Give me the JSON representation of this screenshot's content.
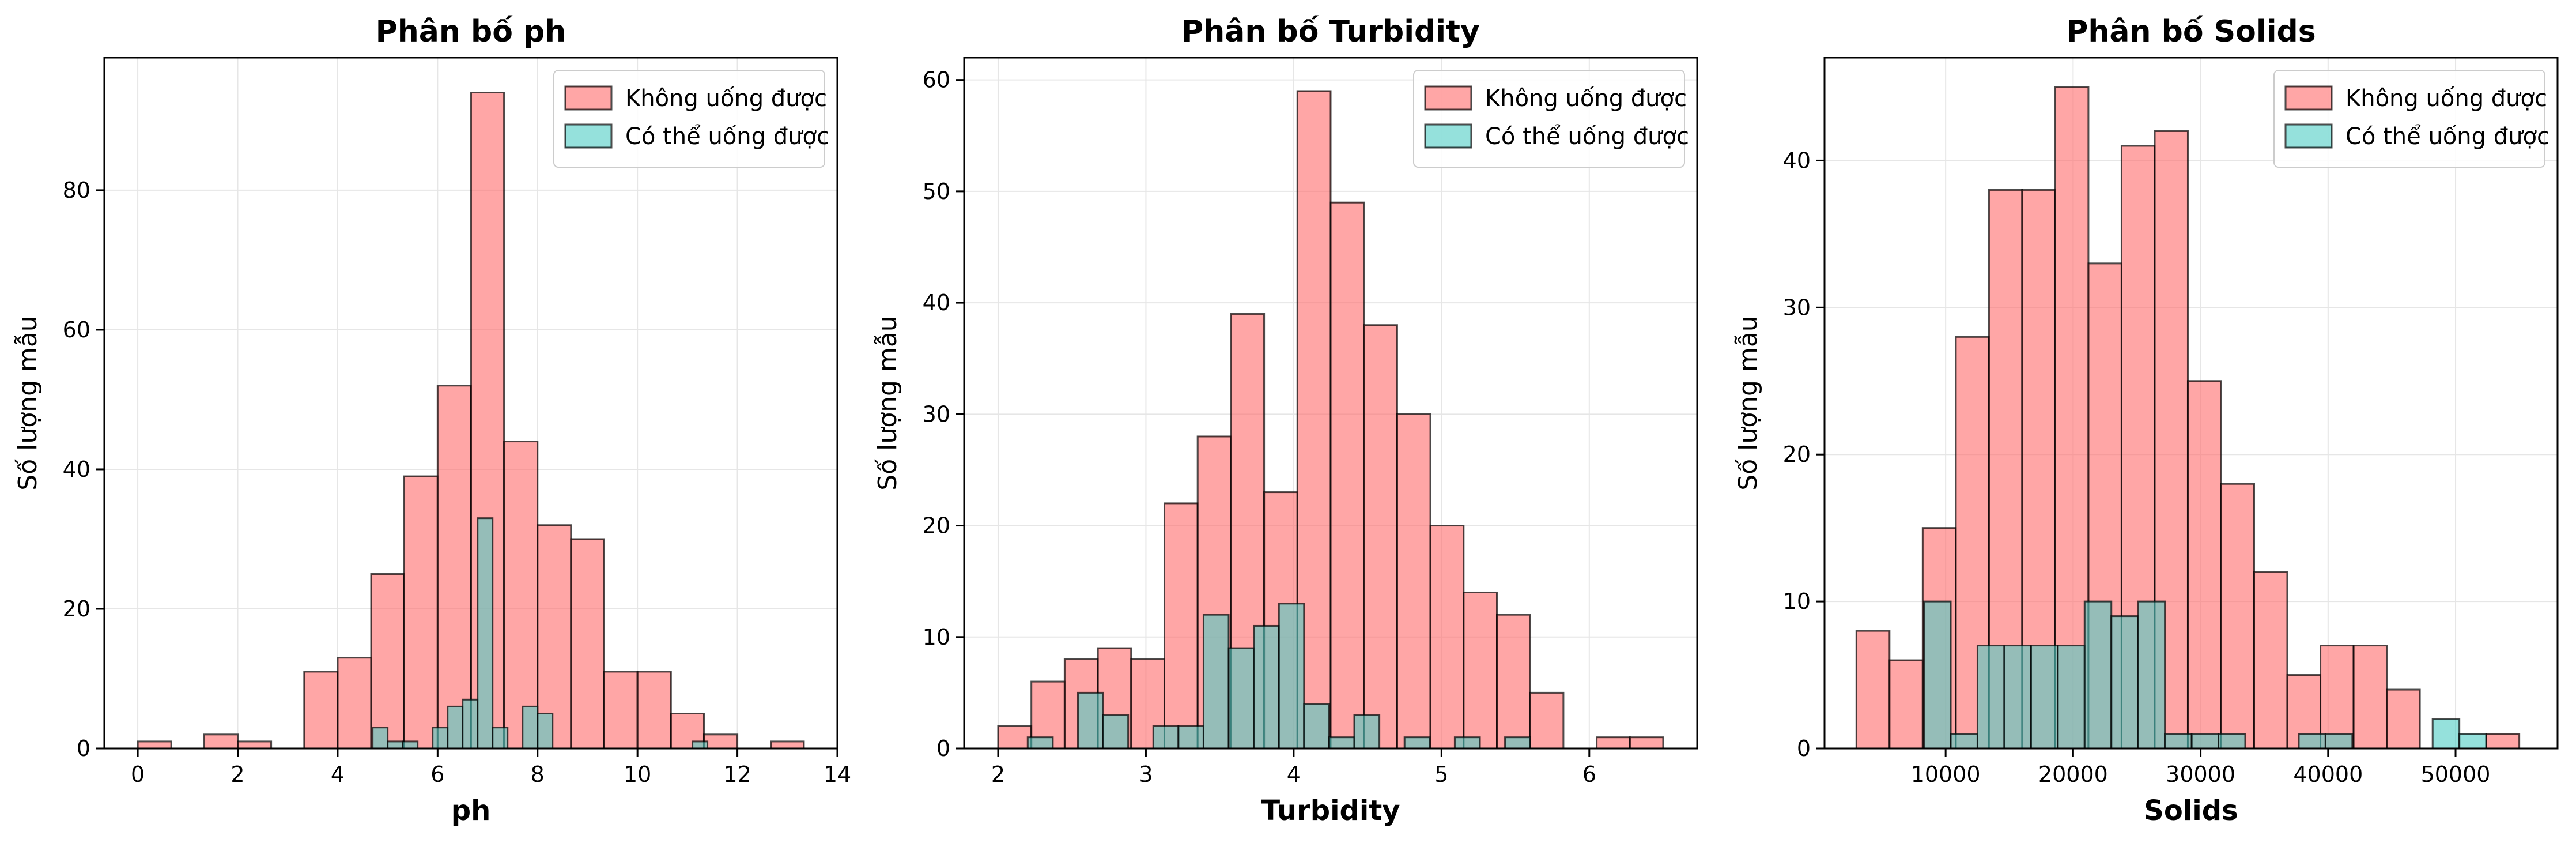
{
  "figure": {
    "colors": {
      "bar_0": "#ff6b6b",
      "bar_1": "#4ecdc4",
      "edge": "#000000",
      "grid": "#e6e6e6"
    },
    "legend_labels": [
      "Không uống được",
      "Có thể uống được"
    ]
  },
  "chart_data": [
    {
      "type": "histogram",
      "title": "Phân bố ph",
      "xlabel": "ph",
      "ylabel": "Số lượng mẫu",
      "xlim": [
        -0.67,
        14.0
      ],
      "ylim": [
        0,
        99
      ],
      "xticks": [
        0,
        2,
        4,
        6,
        8,
        10,
        12,
        14
      ],
      "yticks": [
        0,
        20,
        40,
        60,
        80
      ],
      "grid": true,
      "legend_position": "top-right",
      "series": [
        {
          "name": "Không uống được",
          "color": "#ff6b6b",
          "bins": [
            [
              0.0,
              0.67,
              1
            ],
            [
              0.67,
              1.33,
              0
            ],
            [
              1.33,
              2.0,
              2
            ],
            [
              2.0,
              2.67,
              1
            ],
            [
              2.67,
              3.33,
              0
            ],
            [
              3.33,
              4.0,
              11
            ],
            [
              4.0,
              4.67,
              13
            ],
            [
              4.67,
              5.33,
              25
            ],
            [
              5.33,
              6.0,
              39
            ],
            [
              6.0,
              6.67,
              52
            ],
            [
              6.67,
              7.33,
              94
            ],
            [
              7.33,
              8.0,
              44
            ],
            [
              8.0,
              8.67,
              32
            ],
            [
              8.67,
              9.33,
              30
            ],
            [
              9.33,
              10.0,
              11
            ],
            [
              10.0,
              10.67,
              11
            ],
            [
              10.67,
              11.33,
              5
            ],
            [
              11.33,
              12.0,
              2
            ],
            [
              12.0,
              12.67,
              0
            ],
            [
              12.67,
              13.33,
              1
            ]
          ]
        },
        {
          "name": "Có thể uống được",
          "color": "#4ecdc4",
          "bins": [
            [
              4.7,
              5.0,
              3
            ],
            [
              5.0,
              5.3,
              1
            ],
            [
              5.3,
              5.6,
              1
            ],
            [
              5.6,
              5.9,
              0
            ],
            [
              5.9,
              6.2,
              3
            ],
            [
              6.2,
              6.5,
              6
            ],
            [
              6.5,
              6.8,
              7
            ],
            [
              6.8,
              7.1,
              33
            ],
            [
              7.1,
              7.4,
              3
            ],
            [
              7.4,
              7.7,
              0
            ],
            [
              7.7,
              8.0,
              6
            ],
            [
              8.0,
              8.3,
              5
            ],
            [
              11.1,
              11.4,
              1
            ]
          ]
        }
      ]
    },
    {
      "type": "histogram",
      "title": "Phân bố Turbidity",
      "xlabel": "Turbidity",
      "ylabel": "Số lượng mẫu",
      "xlim": [
        1.77,
        6.73
      ],
      "ylim": [
        0,
        62
      ],
      "xticks": [
        2,
        3,
        4,
        5,
        6
      ],
      "yticks": [
        0,
        10,
        20,
        30,
        40,
        50,
        60
      ],
      "grid": true,
      "legend_position": "top-right",
      "series": [
        {
          "name": "Không uống được",
          "color": "#ff6b6b",
          "bins": [
            [
              2.0,
              2.225,
              2
            ],
            [
              2.225,
              2.45,
              6
            ],
            [
              2.45,
              2.675,
              8
            ],
            [
              2.675,
              2.9,
              9
            ],
            [
              2.9,
              3.125,
              8
            ],
            [
              3.125,
              3.35,
              22
            ],
            [
              3.35,
              3.575,
              28
            ],
            [
              3.575,
              3.8,
              39
            ],
            [
              3.8,
              4.025,
              23
            ],
            [
              4.025,
              4.25,
              59
            ],
            [
              4.25,
              4.475,
              49
            ],
            [
              4.475,
              4.7,
              38
            ],
            [
              4.7,
              4.925,
              30
            ],
            [
              4.925,
              5.15,
              20
            ],
            [
              5.15,
              5.375,
              14
            ],
            [
              5.375,
              5.6,
              12
            ],
            [
              5.6,
              5.825,
              5
            ],
            [
              5.825,
              6.05,
              0
            ],
            [
              6.05,
              6.275,
              1
            ],
            [
              6.275,
              6.5,
              1
            ]
          ]
        },
        {
          "name": "Có thể uống được",
          "color": "#4ecdc4",
          "bins": [
            [
              2.2,
              2.37,
              1
            ],
            [
              2.54,
              2.71,
              5
            ],
            [
              2.71,
              2.88,
              3
            ],
            [
              3.05,
              3.22,
              2
            ],
            [
              3.22,
              3.39,
              2
            ],
            [
              3.39,
              3.56,
              12
            ],
            [
              3.56,
              3.73,
              9
            ],
            [
              3.73,
              3.9,
              11
            ],
            [
              3.9,
              4.07,
              13
            ],
            [
              4.07,
              4.24,
              4
            ],
            [
              4.24,
              4.41,
              1
            ],
            [
              4.41,
              4.58,
              3
            ],
            [
              4.75,
              4.92,
              1
            ],
            [
              5.09,
              5.26,
              1
            ],
            [
              5.43,
              5.6,
              1
            ]
          ]
        }
      ]
    },
    {
      "type": "histogram",
      "title": "Phân bố Solids",
      "xlabel": "Solids",
      "ylabel": "Số lượng mẫu",
      "xlim": [
        500,
        58000
      ],
      "ylim": [
        0,
        47
      ],
      "xticks": [
        10000,
        20000,
        30000,
        40000,
        50000
      ],
      "yticks": [
        0,
        10,
        20,
        30,
        40
      ],
      "grid": true,
      "legend_position": "top-right",
      "series": [
        {
          "name": "Không uống được",
          "color": "#ff6b6b",
          "bins": [
            [
              3000,
              5600,
              8
            ],
            [
              5600,
              8200,
              6
            ],
            [
              8200,
              10800,
              15
            ],
            [
              10800,
              13400,
              28
            ],
            [
              13400,
              16000,
              38
            ],
            [
              16000,
              18600,
              38
            ],
            [
              18600,
              21200,
              45
            ],
            [
              21200,
              23800,
              33
            ],
            [
              23800,
              26400,
              41
            ],
            [
              26400,
              29000,
              42
            ],
            [
              29000,
              31600,
              25
            ],
            [
              31600,
              34200,
              18
            ],
            [
              34200,
              36800,
              12
            ],
            [
              36800,
              39400,
              5
            ],
            [
              39400,
              42000,
              7
            ],
            [
              42000,
              44600,
              7
            ],
            [
              44600,
              47200,
              4
            ],
            [
              47200,
              49800,
              0
            ],
            [
              49800,
              52400,
              0
            ],
            [
              52400,
              55000,
              1
            ]
          ]
        },
        {
          "name": "Có thể uống được",
          "color": "#4ecdc4",
          "bins": [
            [
              8300,
              10400,
              10
            ],
            [
              10400,
              12500,
              1
            ],
            [
              12500,
              14600,
              7
            ],
            [
              14600,
              16700,
              7
            ],
            [
              16700,
              18800,
              7
            ],
            [
              18800,
              20900,
              7
            ],
            [
              20900,
              23000,
              10
            ],
            [
              23000,
              25100,
              9
            ],
            [
              25100,
              27200,
              10
            ],
            [
              27200,
              29300,
              1
            ],
            [
              29300,
              31400,
              1
            ],
            [
              31400,
              33500,
              1
            ],
            [
              37700,
              39800,
              1
            ],
            [
              39800,
              41900,
              1
            ],
            [
              48200,
              50300,
              2
            ],
            [
              50300,
              52400,
              1
            ]
          ]
        }
      ]
    }
  ]
}
